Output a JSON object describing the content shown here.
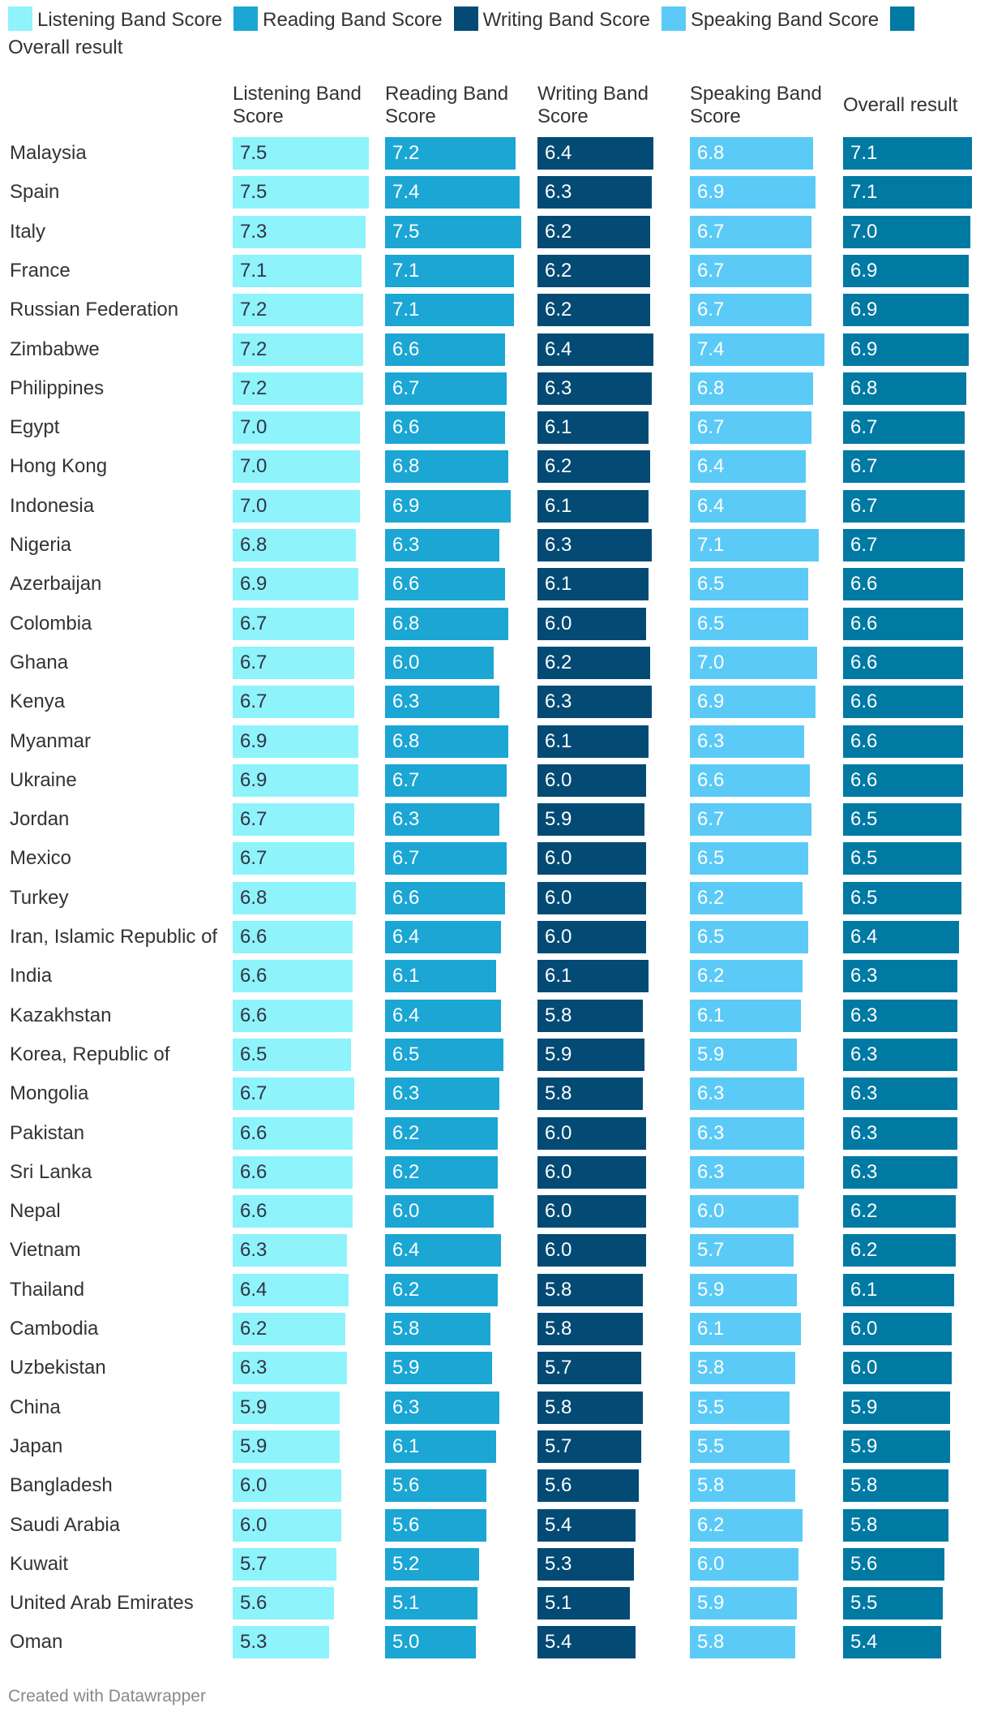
{
  "chart_data": {
    "type": "table",
    "columns": [
      {
        "name": "Listening Band Score",
        "header_lines": [
          "Listening Band",
          "Score"
        ],
        "color": "#8ef3fb"
      },
      {
        "name": "Reading Band Score",
        "header_lines": [
          "Reading Band",
          "Score"
        ],
        "color": "#1ba6d4"
      },
      {
        "name": "Writing Band Score",
        "header_lines": [
          "Writing Band",
          "Score"
        ],
        "color": "#034a74"
      },
      {
        "name": "Speaking Band Score",
        "header_lines": [
          "Speaking Band",
          "Score"
        ],
        "color": "#5ccaf6"
      },
      {
        "name": "Overall result",
        "header_lines": [
          "Overall result"
        ],
        "color": "#0079a3"
      }
    ],
    "rows": [
      {
        "country": "Malaysia",
        "values": [
          7.5,
          7.2,
          6.4,
          6.8,
          7.1
        ]
      },
      {
        "country": "Spain",
        "values": [
          7.5,
          7.4,
          6.3,
          6.9,
          7.1
        ]
      },
      {
        "country": "Italy",
        "values": [
          7.3,
          7.5,
          6.2,
          6.7,
          7.0
        ]
      },
      {
        "country": "France",
        "values": [
          7.1,
          7.1,
          6.2,
          6.7,
          6.9
        ]
      },
      {
        "country": "Russian Federation",
        "values": [
          7.2,
          7.1,
          6.2,
          6.7,
          6.9
        ]
      },
      {
        "country": "Zimbabwe",
        "values": [
          7.2,
          6.6,
          6.4,
          7.4,
          6.9
        ]
      },
      {
        "country": "Philippines",
        "values": [
          7.2,
          6.7,
          6.3,
          6.8,
          6.8
        ]
      },
      {
        "country": "Egypt",
        "values": [
          7.0,
          6.6,
          6.1,
          6.7,
          6.7
        ]
      },
      {
        "country": "Hong Kong",
        "values": [
          7.0,
          6.8,
          6.2,
          6.4,
          6.7
        ]
      },
      {
        "country": "Indonesia",
        "values": [
          7.0,
          6.9,
          6.1,
          6.4,
          6.7
        ]
      },
      {
        "country": "Nigeria",
        "values": [
          6.8,
          6.3,
          6.3,
          7.1,
          6.7
        ]
      },
      {
        "country": "Azerbaijan",
        "values": [
          6.9,
          6.6,
          6.1,
          6.5,
          6.6
        ]
      },
      {
        "country": "Colombia",
        "values": [
          6.7,
          6.8,
          6.0,
          6.5,
          6.6
        ]
      },
      {
        "country": "Ghana",
        "values": [
          6.7,
          6.0,
          6.2,
          7.0,
          6.6
        ]
      },
      {
        "country": "Kenya",
        "values": [
          6.7,
          6.3,
          6.3,
          6.9,
          6.6
        ]
      },
      {
        "country": "Myanmar",
        "values": [
          6.9,
          6.8,
          6.1,
          6.3,
          6.6
        ]
      },
      {
        "country": "Ukraine",
        "values": [
          6.9,
          6.7,
          6.0,
          6.6,
          6.6
        ]
      },
      {
        "country": "Jordan",
        "values": [
          6.7,
          6.3,
          5.9,
          6.7,
          6.5
        ]
      },
      {
        "country": "Mexico",
        "values": [
          6.7,
          6.7,
          6.0,
          6.5,
          6.5
        ]
      },
      {
        "country": "Turkey",
        "values": [
          6.8,
          6.6,
          6.0,
          6.2,
          6.5
        ]
      },
      {
        "country": "Iran, Islamic Republic of",
        "values": [
          6.6,
          6.4,
          6.0,
          6.5,
          6.4
        ]
      },
      {
        "country": "India",
        "values": [
          6.6,
          6.1,
          6.1,
          6.2,
          6.3
        ]
      },
      {
        "country": "Kazakhstan",
        "values": [
          6.6,
          6.4,
          5.8,
          6.1,
          6.3
        ]
      },
      {
        "country": "Korea, Republic of",
        "values": [
          6.5,
          6.5,
          5.9,
          5.9,
          6.3
        ]
      },
      {
        "country": "Mongolia",
        "values": [
          6.7,
          6.3,
          5.8,
          6.3,
          6.3
        ]
      },
      {
        "country": "Pakistan",
        "values": [
          6.6,
          6.2,
          6.0,
          6.3,
          6.3
        ]
      },
      {
        "country": "Sri Lanka",
        "values": [
          6.6,
          6.2,
          6.0,
          6.3,
          6.3
        ]
      },
      {
        "country": "Nepal",
        "values": [
          6.6,
          6.0,
          6.0,
          6.0,
          6.2
        ]
      },
      {
        "country": "Vietnam",
        "values": [
          6.3,
          6.4,
          6.0,
          5.7,
          6.2
        ]
      },
      {
        "country": "Thailand",
        "values": [
          6.4,
          6.2,
          5.8,
          5.9,
          6.1
        ]
      },
      {
        "country": "Cambodia",
        "values": [
          6.2,
          5.8,
          5.8,
          6.1,
          6.0
        ]
      },
      {
        "country": "Uzbekistan",
        "values": [
          6.3,
          5.9,
          5.7,
          5.8,
          6.0
        ]
      },
      {
        "country": "China",
        "values": [
          5.9,
          6.3,
          5.8,
          5.5,
          5.9
        ]
      },
      {
        "country": "Japan",
        "values": [
          5.9,
          6.1,
          5.7,
          5.5,
          5.9
        ]
      },
      {
        "country": "Bangladesh",
        "values": [
          6.0,
          5.6,
          5.6,
          5.8,
          5.8
        ]
      },
      {
        "country": "Saudi Arabia",
        "values": [
          6.0,
          5.6,
          5.4,
          6.2,
          5.8
        ]
      },
      {
        "country": "Kuwait",
        "values": [
          5.7,
          5.2,
          5.3,
          6.0,
          5.6
        ]
      },
      {
        "country": "United Arab Emirates",
        "values": [
          5.6,
          5.1,
          5.1,
          5.9,
          5.5
        ]
      },
      {
        "country": "Oman",
        "values": [
          5.3,
          5.0,
          5.4,
          5.8,
          5.4
        ]
      }
    ],
    "legend": "top",
    "grid": false
  },
  "footer": {
    "credit": "Created with Datawrapper"
  }
}
